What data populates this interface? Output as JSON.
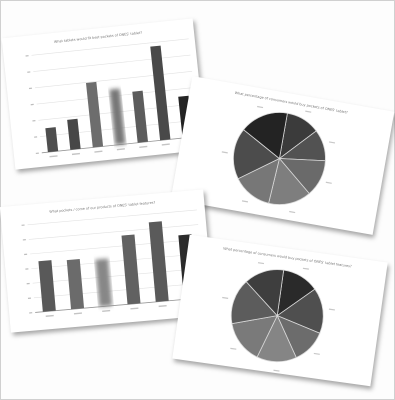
{
  "chart_data": [
    {
      "type": "bar",
      "title": "What tablets would fit best pockets of ONES' tablet?",
      "values": [
        3.2,
        4.0,
        8.6,
        7.4,
        6.8,
        12.5,
        5.5
      ],
      "ylim": [
        0,
        13
      ],
      "colors": [
        "#4e4e4e",
        "#474747",
        "#6d6d6d",
        "#777777",
        "#5c5c5c",
        "#494949",
        "#242424"
      ],
      "blur": [
        false,
        false,
        false,
        true,
        false,
        false,
        false
      ]
    },
    {
      "type": "pie",
      "title": "What percentage of consumers would buy pockets of ONES' tablet?",
      "values": [
        12,
        11,
        13,
        15,
        14,
        18,
        17
      ],
      "colors": [
        "#3b3b3b",
        "#525252",
        "#6a6a6a",
        "#7e7e7e",
        "#777777",
        "#4c4c4c",
        "#232323"
      ]
    },
    {
      "type": "bar",
      "title": "What pockets / come of our products of ONES' tablet features?",
      "values": [
        7.5,
        7.3,
        7.0,
        10.2,
        11.8,
        9.5
      ],
      "ylim": [
        0,
        13
      ],
      "colors": [
        "#595959",
        "#6b6b6b",
        "#878787",
        "#616161",
        "#5a5a5a",
        "#2c2c2c"
      ],
      "blur": [
        false,
        false,
        true,
        false,
        false,
        false
      ]
    },
    {
      "type": "pie",
      "title": "What percentage of consumers would buy pockets of ONES' tablet features?",
      "values": [
        13,
        16,
        12,
        14,
        15,
        16,
        14
      ],
      "colors": [
        "#2a2a2a",
        "#4f4f4f",
        "#6c6c6c",
        "#858585",
        "#7a7a7a",
        "#5c5c5c",
        "#3e3e3e"
      ]
    }
  ]
}
